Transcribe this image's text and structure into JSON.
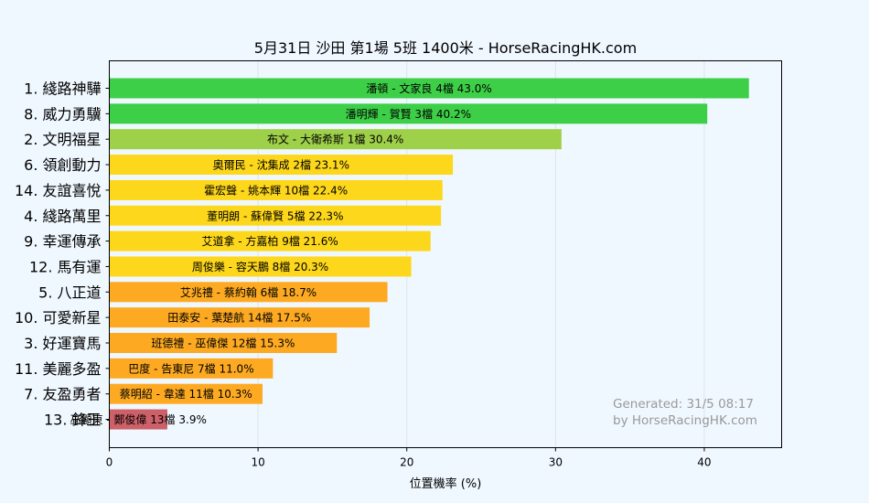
{
  "chart_data": {
    "type": "bar",
    "orientation": "horizontal",
    "title": "5月31日  沙田  第1場  5班  1400米 - HorseRacingHK.com",
    "xlabel": "位置機率 (%)",
    "ylabel": "",
    "xlim": [
      0,
      45.2
    ],
    "xticks": [
      0,
      10,
      20,
      30,
      40
    ],
    "grid": true,
    "bars": [
      {
        "horse": "1. 綫路神驊",
        "label": "潘頓 - 文家良 4檔  43.0%",
        "value": 43.0,
        "color": "#3dcf47"
      },
      {
        "horse": "8. 威力勇驥",
        "label": "潘明輝 - 賀賢 3檔  40.2%",
        "value": 40.2,
        "color": "#3dcf47"
      },
      {
        "horse": "2. 文明福星",
        "label": "布文 - 大衛希斯 1檔  30.4%",
        "value": 30.4,
        "color": "#9fd04a"
      },
      {
        "horse": "6. 領創動力",
        "label": "奧爾民 - 沈集成 2檔  23.1%",
        "value": 23.1,
        "color": "#fdd71b"
      },
      {
        "horse": "14. 友誼喜悅",
        "label": "霍宏聲 - 姚本輝 10檔  22.4%",
        "value": 22.4,
        "color": "#fdd71b"
      },
      {
        "horse": "4. 綫路萬里",
        "label": "董明朗 - 蘇偉賢 5檔  22.3%",
        "value": 22.3,
        "color": "#fdd71b"
      },
      {
        "horse": "9. 幸運傳承",
        "label": "艾道拿 - 方嘉柏 9檔  21.6%",
        "value": 21.6,
        "color": "#fdd71b"
      },
      {
        "horse": "12. 馬有運",
        "label": "周俊樂 - 容天鵬 8檔  20.3%",
        "value": 20.3,
        "color": "#fdd71b"
      },
      {
        "horse": "5. 八正道",
        "label": "艾兆禮 - 蔡約翰 6檔  18.7%",
        "value": 18.7,
        "color": "#fdaa22"
      },
      {
        "horse": "10. 可愛新星",
        "label": "田泰安 - 葉楚航 14檔  17.5%",
        "value": 17.5,
        "color": "#fdaa22"
      },
      {
        "horse": "3. 好運寶馬",
        "label": "班德禮 - 巫偉傑 12檔  15.3%",
        "value": 15.3,
        "color": "#fdaa22"
      },
      {
        "horse": "11. 美麗多盈",
        "label": "巴度 - 告東尼 7檔  11.0%",
        "value": 11.0,
        "color": "#fdaa22"
      },
      {
        "horse": "7. 友盈勇者",
        "label": "蔡明紹 - 韋達 11檔  10.3%",
        "value": 10.3,
        "color": "#fdaa22"
      },
      {
        "horse": "13. 鋒王",
        "label": "巫顯東 - 鄭俊偉 13檔  3.9%",
        "value": 3.9,
        "color": "#cd6068"
      }
    ]
  },
  "watermark": {
    "line1": "Generated: 31/5 08:17",
    "line2": "by HorseRacingHK.com"
  }
}
